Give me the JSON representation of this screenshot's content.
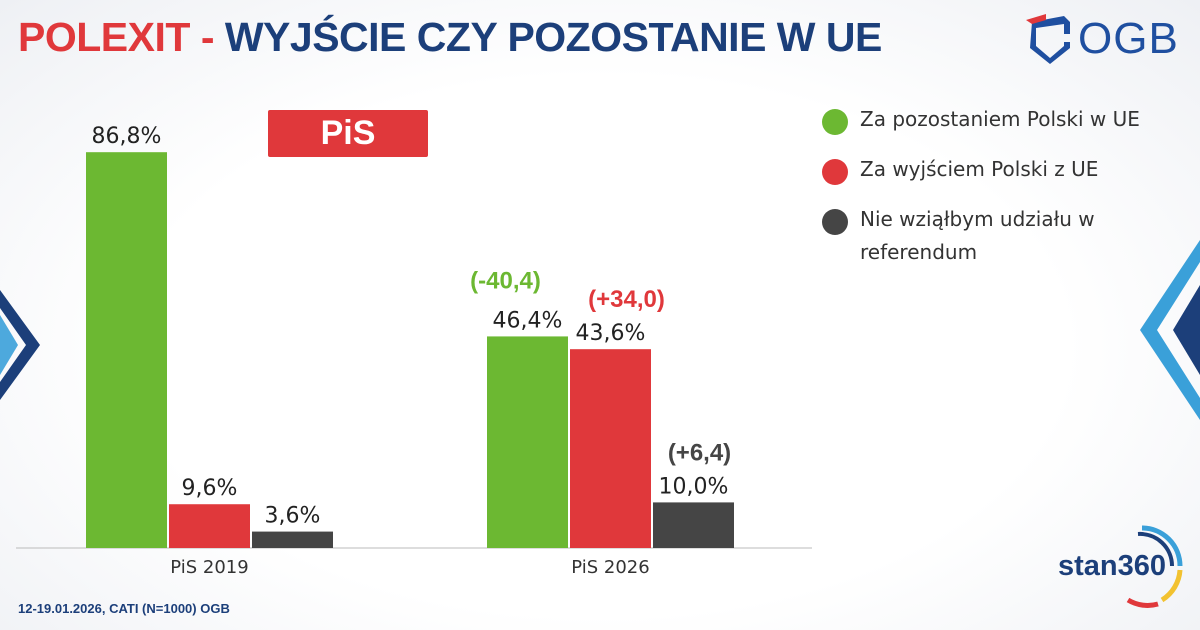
{
  "header": {
    "title_part1": "POLEXIT",
    "title_sep": " - ",
    "title_part2": "WYJŚCIE CZY POZOSTANIE W UE",
    "logo_text": "OGB"
  },
  "badge": {
    "label": "PiS"
  },
  "legend": {
    "items": [
      {
        "label": "Za pozostaniem Polski w UE",
        "color": "#6cb832"
      },
      {
        "label": "Za wyjściem Polski z UE",
        "color": "#e0383b"
      },
      {
        "label": "Nie wziąłbym udziału w referendum",
        "color": "#454545"
      }
    ]
  },
  "footer": {
    "note": "12-19.01.2026, CATI (N=1000) OGB",
    "brand": "stan360"
  },
  "colors": {
    "green": "#6cb832",
    "red": "#e0383b",
    "gray": "#454545",
    "navy": "#1c3f7a"
  },
  "chart_data": {
    "type": "bar",
    "categories": [
      "PiS 2019",
      "PiS 2026"
    ],
    "series": [
      {
        "name": "Za pozostaniem Polski w UE",
        "values": [
          86.8,
          46.4
        ],
        "labels": [
          "86,8%",
          "46,4%"
        ],
        "change": [
          null,
          "(-40,4)"
        ]
      },
      {
        "name": "Za wyjściem Polski z UE",
        "values": [
          9.6,
          43.6
        ],
        "labels": [
          "9,6%",
          "43,6%"
        ],
        "change": [
          null,
          "(+34,0)"
        ]
      },
      {
        "name": "Nie wziąłbym udziału w referendum",
        "values": [
          3.6,
          10.0
        ],
        "labels": [
          "3,6%",
          "10,0%"
        ],
        "change": [
          null,
          "(+6,4)"
        ]
      }
    ],
    "ylim": [
      0,
      100
    ],
    "grid": false,
    "legend_position": "right"
  }
}
